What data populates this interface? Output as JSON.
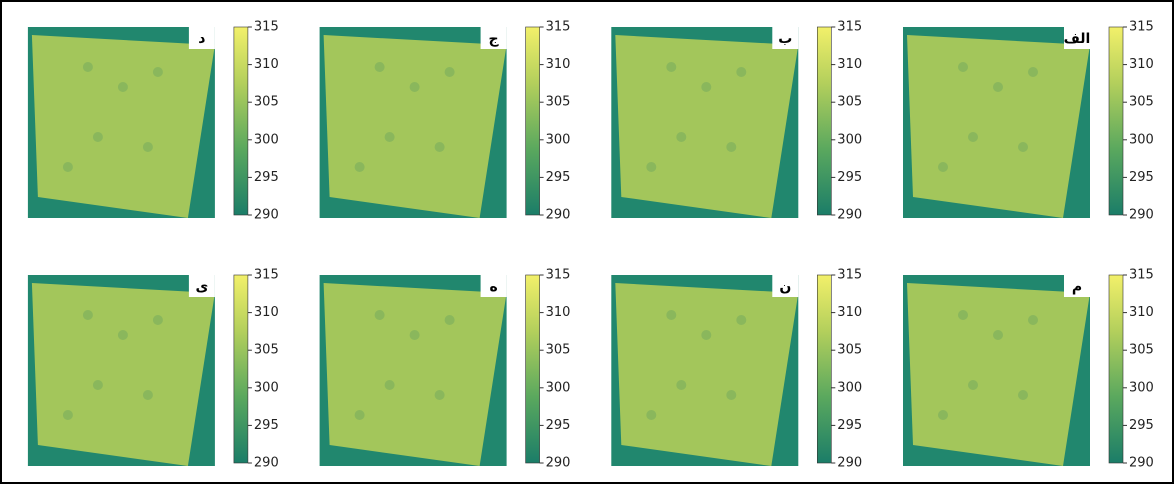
{
  "panels": [
    {
      "label": "الف",
      "colorbar": {
        "lim": [
          290,
          315
        ],
        "ticks": [
          290,
          295,
          300,
          305,
          310,
          315
        ]
      }
    },
    {
      "label": "ب",
      "colorbar": {
        "lim": [
          290,
          315
        ],
        "ticks": [
          290,
          295,
          300,
          305,
          310,
          315
        ]
      }
    },
    {
      "label": "ج",
      "colorbar": {
        "lim": [
          290,
          315
        ],
        "ticks": [
          290,
          295,
          300,
          305,
          310,
          315
        ]
      }
    },
    {
      "label": "د",
      "colorbar": {
        "lim": [
          290,
          315
        ],
        "ticks": [
          290,
          295,
          300,
          305,
          310,
          315
        ]
      }
    },
    {
      "label": "م",
      "colorbar": {
        "lim": [
          290,
          315
        ],
        "ticks": [
          290,
          295,
          300,
          305,
          310,
          315
        ]
      }
    },
    {
      "label": "ن",
      "colorbar": {
        "lim": [
          290,
          315
        ],
        "ticks": [
          290,
          295,
          300,
          305,
          310,
          315
        ]
      }
    },
    {
      "label": "ه",
      "colorbar": {
        "lim": [
          290,
          315
        ],
        "ticks": [
          290,
          295,
          300,
          305,
          310,
          315
        ]
      }
    },
    {
      "label": "ی",
      "colorbar": {
        "lim": [
          290,
          315
        ],
        "ticks": [
          290,
          295,
          300,
          305,
          310,
          315
        ]
      }
    }
  ]
}
